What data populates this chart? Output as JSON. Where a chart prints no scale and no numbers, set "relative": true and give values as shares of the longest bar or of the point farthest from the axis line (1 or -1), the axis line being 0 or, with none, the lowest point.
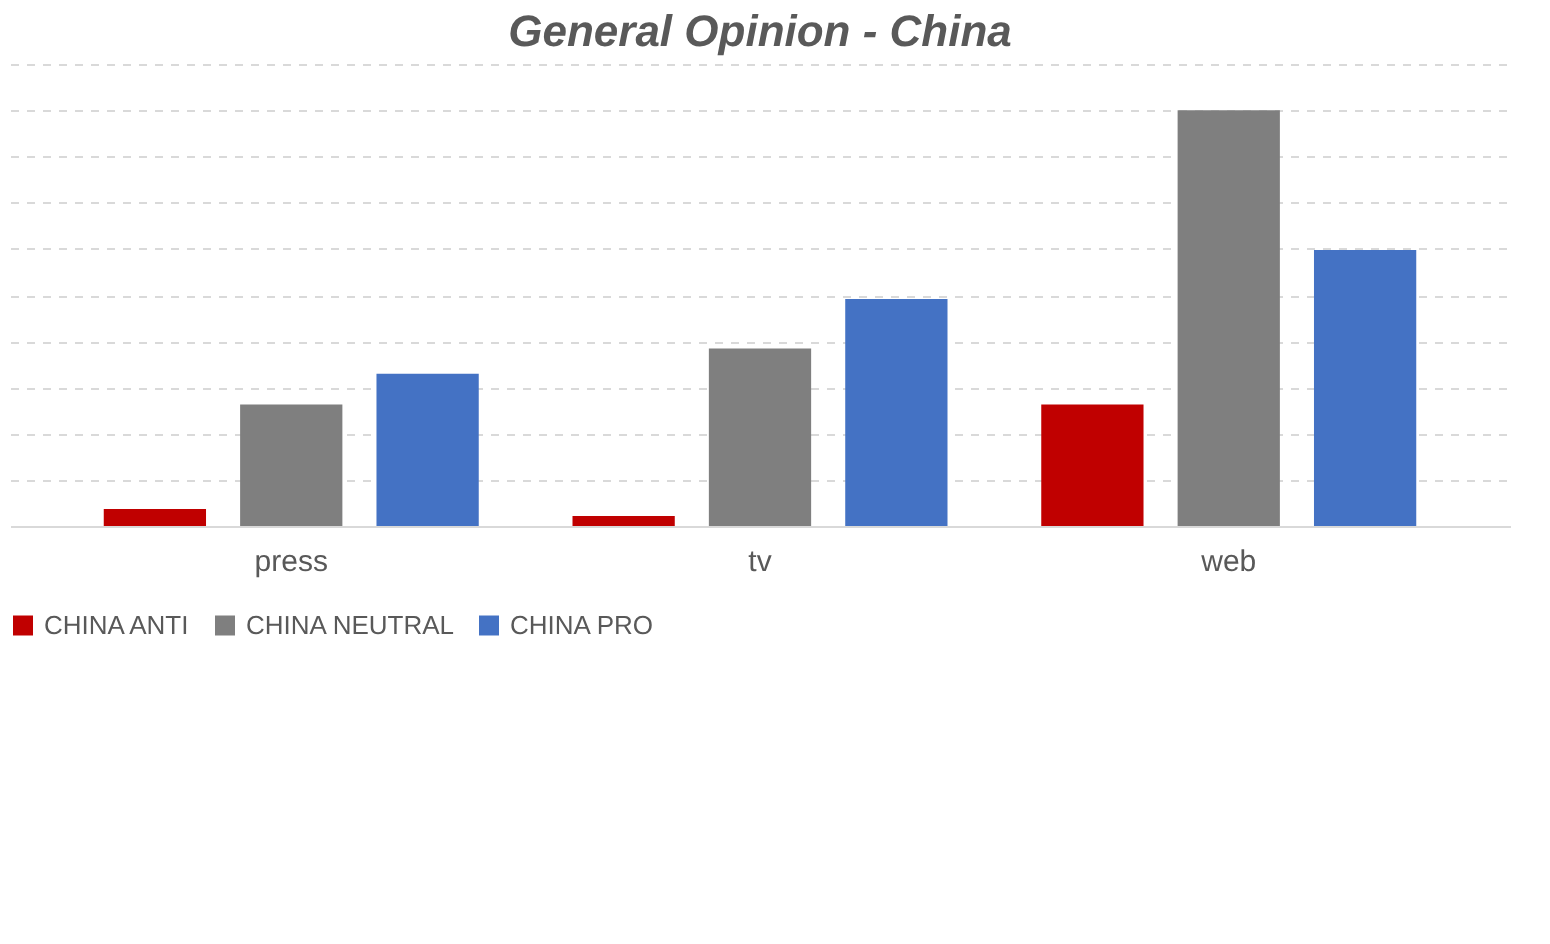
{
  "chart_data": {
    "type": "bar",
    "title": "General Opinion - China",
    "relative": true,
    "grid": "y",
    "legend": "bottom",
    "categories": [
      "press",
      "tv",
      "web"
    ],
    "series": [
      {
        "name": "CHINA ANTI",
        "color": "#c00000",
        "values": [
          0.041,
          0.024,
          0.292
        ]
      },
      {
        "name": "CHINA NEUTRAL",
        "color": "#7f7f7f",
        "values": [
          0.292,
          0.427,
          1
        ]
      },
      {
        "name": "CHINA PRO",
        "color": "#4472c4",
        "values": [
          0.366,
          0.546,
          0.664
        ]
      }
    ]
  }
}
